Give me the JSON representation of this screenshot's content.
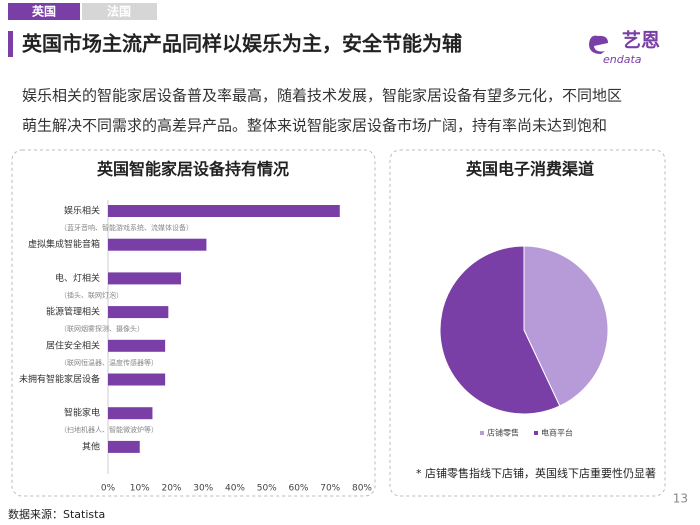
{
  "header": {
    "tabs": [
      "英国",
      "法国"
    ],
    "title": "英国市场主流产品同样以娱乐为主，安全节能为辅"
  },
  "logo": {
    "name": "艺恩",
    "sub": "endata"
  },
  "paragraph": [
    "娱乐相关的智能家居设备普及率最高，随着技术发展，智能家居设备有望多元化，不同地区",
    "萌生解决不同需求的高差异产品。整体来说智能家居设备市场广阔，持有率尚未达到饱和"
  ],
  "chart_data": [
    {
      "type": "bar",
      "title": "英国智能家居设备持有情况",
      "categories": [
        "娱乐相关",
        "虚拟集成智能音箱",
        "电、灯相关",
        "能源管理相关",
        "居住安全相关",
        "未拥有智能家居设备",
        "智能家电",
        "其他"
      ],
      "sublabels": [
        "（蓝牙音响、智能游戏系统、流媒体设备）",
        null,
        "（插头、联网灯泡）",
        "（联网烟雾探测、摄像头）",
        "（联网恒温器、温度传感器等）",
        null,
        "（扫地机器人、智能微波炉等）",
        null
      ],
      "values": [
        73,
        31,
        23,
        19,
        18,
        18,
        14,
        10
      ],
      "color": "#7a3fa6",
      "xlim": [
        0,
        80
      ],
      "xticks": [
        {
          "value": 0,
          "label": "0%"
        },
        {
          "value": 10,
          "label": "10%"
        },
        {
          "value": 20,
          "label": "20%"
        },
        {
          "value": 30,
          "label": "30%"
        },
        {
          "value": 40,
          "label": "40%"
        },
        {
          "value": 50,
          "label": "50%"
        },
        {
          "value": 60,
          "label": "60%"
        },
        {
          "value": 70,
          "label": "70%"
        },
        {
          "value": 80,
          "label": "80%"
        }
      ]
    },
    {
      "type": "pie",
      "title": "英国电子消费渠道",
      "categories": [
        "店铺零售",
        "电商平台"
      ],
      "values": [
        43,
        57
      ],
      "colors": [
        "#b79ad8",
        "#7a3fa6"
      ],
      "footnote": "* 店铺零售指线下店铺，英国线下店重要性仍显著"
    }
  ],
  "source": "数据来源：Statista",
  "page_number": "13"
}
